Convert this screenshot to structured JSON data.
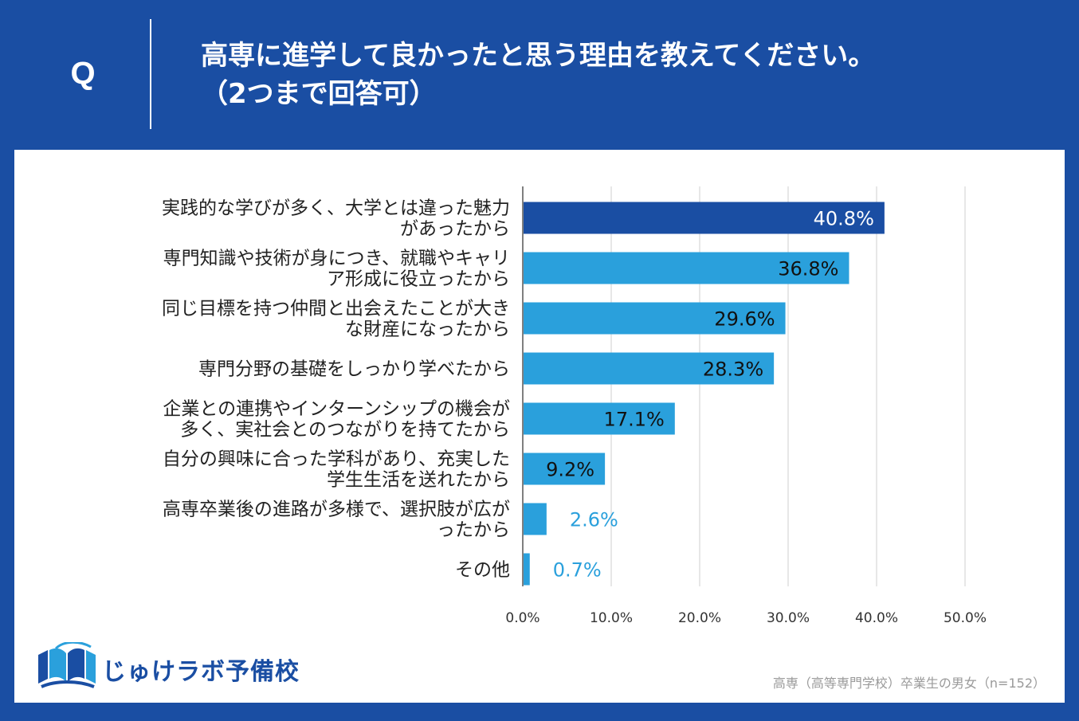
{
  "question": {
    "label": "Q",
    "line1": "高専に進学して良かったと思う理由を教えてください。",
    "line2": "（2つまで回答可）"
  },
  "colors": {
    "background": "#1a4ea3",
    "panel": "#ffffff",
    "top_bar": "#1a4ea3",
    "bar": "#2aa0dc",
    "value_outside": "#2aa0dc",
    "grid": "#cfcfcf"
  },
  "logo": {
    "text": "じゅけラボ予備校",
    "icon": "open-book-logo-icon"
  },
  "note": "高専（高等専門学校）卒業生の男女（n=152）",
  "chart_data": {
    "type": "bar",
    "orientation": "horizontal",
    "categories": [
      [
        "実践的な学びが多く、大学とは違った魅力",
        "があったから"
      ],
      [
        "専門知識や技術が身につき、就職やキャリ",
        "ア形成に役立ったから"
      ],
      [
        "同じ目標を持つ仲間と出会えたことが大き",
        "な財産になったから"
      ],
      [
        "専門分野の基礎をしっかり学べたから"
      ],
      [
        "企業との連携やインターンシップの機会が",
        "多く、実社会とのつながりを持てたから"
      ],
      [
        "自分の興味に合った学科があり、充実した",
        "学生生活を送れたから"
      ],
      [
        "高専卒業後の進路が多様で、選択肢が広が",
        "ったから"
      ],
      [
        "その他"
      ]
    ],
    "values": [
      40.8,
      36.8,
      29.6,
      28.3,
      17.1,
      9.2,
      2.6,
      0.7
    ],
    "value_labels": [
      "40.8%",
      "36.8%",
      "29.6%",
      "28.3%",
      "17.1%",
      "9.2%",
      "2.6%",
      "0.7%"
    ],
    "xlim": [
      0,
      50
    ],
    "xticks": [
      "0.0%",
      "10.0%",
      "20.0%",
      "30.0%",
      "40.0%",
      "50.0%"
    ],
    "highlight_index": 0,
    "grid": true
  }
}
